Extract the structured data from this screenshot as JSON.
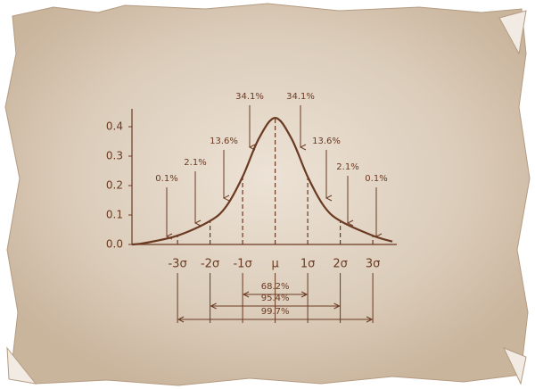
{
  "chart_data": {
    "type": "line",
    "x": [
      -4.4,
      -4,
      -3,
      -2,
      -1.5,
      -1,
      -0.5,
      0,
      0.5,
      1,
      1.5,
      2,
      3,
      3.6
    ],
    "values": [
      0,
      0.005,
      0.03,
      0.08,
      0.13,
      0.23,
      0.36,
      0.43,
      0.36,
      0.23,
      0.13,
      0.08,
      0.03,
      0.01
    ],
    "color": "#6b3a22",
    "xlim": [
      -4.4,
      3.6
    ],
    "ylim": [
      0,
      0.45
    ],
    "xticks": [
      {
        "value": -3,
        "label": "-3σ"
      },
      {
        "value": -2,
        "label": "-2σ"
      },
      {
        "value": -1,
        "label": "-1σ"
      },
      {
        "value": 0,
        "label": "μ"
      },
      {
        "value": 1,
        "label": "1σ"
      },
      {
        "value": 2,
        "label": "2σ"
      },
      {
        "value": 3,
        "label": "3σ"
      }
    ],
    "yticks": [
      {
        "value": 0,
        "label": "0.0"
      },
      0.1,
      0.2,
      0.3,
      0.4
    ],
    "annotations": [
      "0.1%",
      "2.1%",
      "13.6%",
      "34.1%",
      "34.1%",
      "13.6%",
      "2.1%",
      "0.1%"
    ],
    "intervals": [
      "68.2%",
      "95.4%",
      "99.7%"
    ]
  }
}
